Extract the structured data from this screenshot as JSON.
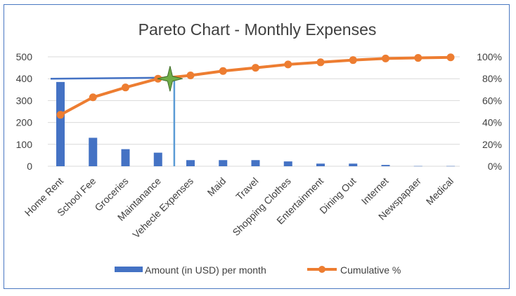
{
  "chart_data": {
    "type": "bar",
    "title": "Pareto Chart - Monthly Expenses",
    "categories": [
      "Home Rent",
      "School Fee",
      "Groceries",
      "Maintanance",
      "Vehecle Expenses",
      "Maid",
      "Travel",
      "Shopping Clothes",
      "Entertainment",
      "Dining Out",
      "Internet",
      "Newspapaer",
      "Medical"
    ],
    "series": [
      {
        "name": "Amount (in USD) per month",
        "type": "bar",
        "axis": "left",
        "color": "#4472c4",
        "values": [
          385,
          130,
          78,
          62,
          28,
          28,
          28,
          22,
          12,
          12,
          6,
          1,
          1
        ]
      },
      {
        "name": "Cumulative %",
        "type": "line",
        "axis": "right",
        "color": "#ed7d31",
        "values": [
          47,
          63,
          72,
          80,
          83,
          87,
          90,
          93,
          95,
          97,
          98.5,
          99,
          99.5
        ]
      }
    ],
    "y_left": {
      "min": 0,
      "max": 500,
      "ticks": [
        "0",
        "100",
        "200",
        "300",
        "400",
        "500"
      ]
    },
    "y_right": {
      "min": 0,
      "max": 100,
      "ticks": [
        "0%",
        "20%",
        "40%",
        "60%",
        "80%",
        "100%"
      ]
    },
    "annotations": {
      "threshold_line": {
        "color": "#4472c4",
        "from": {
          "category": "Home Rent",
          "y": 400
        },
        "to": {
          "category": "Maintanance",
          "y": 405
        }
      },
      "cutoff_line": {
        "color": "#5b9bd5",
        "between_categories": [
          "Maintanance",
          "Vehecle Expenses"
        ],
        "y_top": 405
      },
      "marker": {
        "shape": "star",
        "color": "#70ad47",
        "percent": 80
      }
    },
    "grid": true,
    "legend": "bottom"
  }
}
